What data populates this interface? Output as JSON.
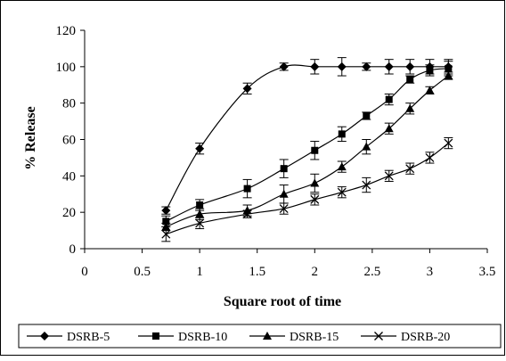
{
  "chart_data": {
    "type": "line",
    "title": "",
    "xlabel": "Square root of time",
    "ylabel": "% Release",
    "xlim": [
      0,
      3.5
    ],
    "ylim": [
      0,
      120
    ],
    "xticks": [
      0,
      0.5,
      1,
      1.5,
      2,
      2.5,
      3,
      3.5
    ],
    "xtick_labels": [
      "0",
      "0.5",
      "1",
      "1.5",
      "2",
      "2.5",
      "3",
      "3.5"
    ],
    "yticks": [
      0,
      20,
      40,
      60,
      80,
      100,
      120
    ],
    "ytick_labels": [
      "0",
      "20",
      "40",
      "60",
      "80",
      "100",
      "120"
    ],
    "grid": false,
    "legend_position": "bottom",
    "x": [
      0.707,
      1.0,
      1.414,
      1.732,
      2.0,
      2.236,
      2.449,
      2.646,
      2.828,
      3.0,
      3.162
    ],
    "series": [
      {
        "name": "DSRB-5",
        "marker": "diamond",
        "smooth": true,
        "values": [
          21,
          55,
          88,
          100,
          100,
          100,
          100,
          100,
          100,
          100,
          100
        ],
        "errors": [
          2,
          3,
          3,
          2,
          4,
          5,
          2,
          4,
          4,
          4,
          4
        ]
      },
      {
        "name": "DSRB-10",
        "marker": "square",
        "smooth": true,
        "values": [
          15,
          24,
          33,
          44,
          54,
          63,
          73,
          82,
          93,
          98,
          99
        ],
        "errors": [
          3,
          3,
          5,
          5,
          5,
          4,
          2,
          3,
          2,
          3,
          4
        ]
      },
      {
        "name": "DSRB-15",
        "marker": "triangle",
        "smooth": true,
        "values": [
          12,
          19,
          21,
          30,
          36,
          45,
          56,
          66,
          77,
          87,
          95
        ],
        "errors": [
          2,
          3,
          3,
          5,
          5,
          3,
          4,
          3,
          3,
          2,
          2
        ]
      },
      {
        "name": "DSRB-20",
        "marker": "x",
        "smooth": true,
        "values": [
          8,
          14,
          19,
          22,
          27,
          31,
          35,
          40,
          44,
          50,
          58
        ],
        "errors": [
          4,
          3,
          2,
          3,
          3,
          3,
          4,
          3,
          3,
          3,
          3
        ]
      }
    ],
    "colors": {
      "line": "#000000",
      "background": "#ffffff",
      "frame": "#000000"
    }
  }
}
